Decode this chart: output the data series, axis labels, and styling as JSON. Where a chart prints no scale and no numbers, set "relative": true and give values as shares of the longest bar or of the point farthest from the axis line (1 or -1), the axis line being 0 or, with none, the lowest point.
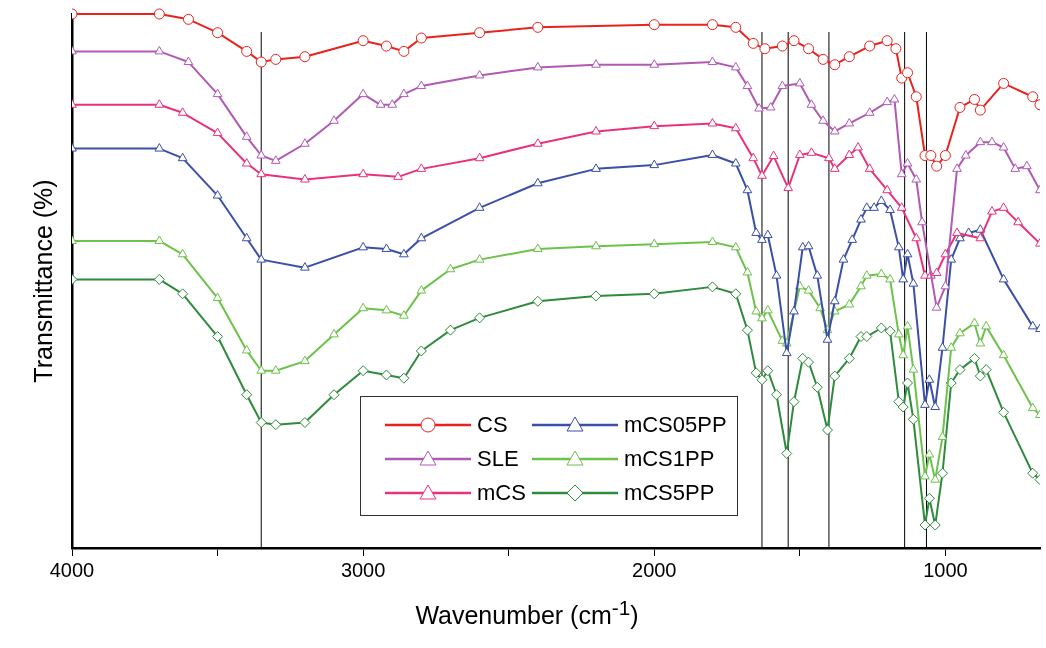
{
  "chart_data": {
    "type": "line",
    "xlabel": "Wavenumber (cm$^{-1}$)",
    "ylabel": "Transmittance (%)",
    "relative": true,
    "xlim": [
      4000,
      675
    ],
    "xticks": [
      4000,
      {
        "value": 3500,
        "label": null
      },
      3000,
      {
        "value": 2500,
        "label": null
      },
      2000,
      {
        "value": 1500,
        "label": null
      },
      1000
    ],
    "grid": false,
    "legend": "bottom",
    "line_style": "solid",
    "ref_lines": [
      {
        "axis": "x",
        "value": 3350,
        "color": "#000000"
      },
      {
        "axis": "x",
        "value": 1630,
        "color": "#000000"
      },
      {
        "axis": "x",
        "value": 1540,
        "color": "#000000"
      },
      {
        "axis": "x",
        "value": 1400,
        "color": "#000000"
      },
      {
        "axis": "x",
        "value": 1140,
        "color": "#000000"
      },
      {
        "axis": "x",
        "value": 1065,
        "color": "#000000"
      }
    ],
    "series": [
      {
        "name": "CS",
        "color": "#e8231e",
        "marker": "circle",
        "x": [
          4000,
          3700,
          3600,
          3500,
          3400,
          3350,
          3300,
          3200,
          3000,
          2920,
          2860,
          2800,
          2600,
          2400,
          2000,
          1800,
          1720,
          1660,
          1620,
          1560,
          1520,
          1470,
          1420,
          1380,
          1330,
          1260,
          1200,
          1170,
          1150,
          1130,
          1100,
          1070,
          1050,
          1030,
          1000,
          950,
          900,
          880,
          800,
          700,
          675
        ],
        "values": [
          1.0,
          1.0,
          0.99,
          0.965,
          0.93,
          0.91,
          0.915,
          0.92,
          0.95,
          0.94,
          0.93,
          0.955,
          0.965,
          0.975,
          0.98,
          0.98,
          0.975,
          0.945,
          0.935,
          0.94,
          0.95,
          0.935,
          0.915,
          0.905,
          0.92,
          0.94,
          0.95,
          0.935,
          0.88,
          0.89,
          0.845,
          0.735,
          0.735,
          0.715,
          0.735,
          0.825,
          0.84,
          0.82,
          0.87,
          0.845,
          0.83
        ]
      },
      {
        "name": "SLE",
        "color": "#b05ab4",
        "marker": "triangle",
        "x": [
          4000,
          3700,
          3600,
          3500,
          3400,
          3350,
          3300,
          3200,
          3100,
          3000,
          2940,
          2900,
          2860,
          2800,
          2600,
          2400,
          2200,
          2000,
          1800,
          1720,
          1680,
          1640,
          1600,
          1560,
          1500,
          1460,
          1420,
          1380,
          1330,
          1260,
          1200,
          1175,
          1150,
          1130,
          1100,
          1080,
          1030,
          1000,
          960,
          930,
          880,
          840,
          800,
          760,
          720,
          675
        ],
        "values": [
          0.93,
          0.93,
          0.91,
          0.85,
          0.77,
          0.735,
          0.725,
          0.757,
          0.8,
          0.85,
          0.83,
          0.83,
          0.85,
          0.865,
          0.885,
          0.9,
          0.905,
          0.905,
          0.91,
          0.9,
          0.865,
          0.823,
          0.825,
          0.865,
          0.87,
          0.83,
          0.8,
          0.78,
          0.795,
          0.815,
          0.835,
          0.84,
          0.7,
          0.72,
          0.69,
          0.61,
          0.45,
          0.49,
          0.71,
          0.735,
          0.76,
          0.76,
          0.75,
          0.71,
          0.715,
          0.67
        ]
      },
      {
        "name": "mCS",
        "color": "#e8327e",
        "marker": "triangle",
        "x": [
          4000,
          3700,
          3620,
          3500,
          3400,
          3350,
          3200,
          3000,
          2880,
          2800,
          2600,
          2400,
          2200,
          2000,
          1800,
          1720,
          1660,
          1630,
          1590,
          1540,
          1500,
          1460,
          1400,
          1380,
          1330,
          1300,
          1260,
          1200,
          1150,
          1100,
          1070,
          1050,
          1030,
          1000,
          960,
          880,
          840,
          800,
          750,
          675
        ],
        "values": [
          0.83,
          0.83,
          0.815,
          0.777,
          0.72,
          0.7,
          0.69,
          0.7,
          0.695,
          0.71,
          0.73,
          0.757,
          0.78,
          0.79,
          0.795,
          0.786,
          0.73,
          0.697,
          0.734,
          0.674,
          0.736,
          0.74,
          0.73,
          0.71,
          0.736,
          0.75,
          0.71,
          0.67,
          0.637,
          0.58,
          0.51,
          0.51,
          0.515,
          0.55,
          0.59,
          0.58,
          0.63,
          0.637,
          0.61,
          0.57
        ]
      },
      {
        "name": "mCS05PP",
        "color": "#3a4fa8",
        "marker": "triangle",
        "x": [
          4000,
          3700,
          3620,
          3500,
          3400,
          3350,
          3200,
          3000,
          2920,
          2860,
          2800,
          2600,
          2400,
          2200,
          2000,
          1800,
          1720,
          1680,
          1650,
          1630,
          1610,
          1580,
          1545,
          1520,
          1490,
          1470,
          1440,
          1405,
          1380,
          1350,
          1320,
          1290,
          1270,
          1245,
          1220,
          1190,
          1160,
          1145,
          1130,
          1110,
          1070,
          1055,
          1035,
          1010,
          980,
          950,
          920,
          880,
          800,
          700,
          675
        ],
        "values": [
          0.748,
          0.748,
          0.73,
          0.66,
          0.58,
          0.54,
          0.525,
          0.563,
          0.56,
          0.55,
          0.58,
          0.637,
          0.683,
          0.71,
          0.717,
          0.736,
          0.72,
          0.67,
          0.59,
          0.577,
          0.586,
          0.51,
          0.365,
          0.443,
          0.563,
          0.565,
          0.51,
          0.39,
          0.462,
          0.54,
          0.577,
          0.615,
          0.637,
          0.637,
          0.65,
          0.633,
          0.563,
          0.503,
          0.55,
          0.495,
          0.268,
          0.315,
          0.264,
          0.375,
          0.54,
          0.58,
          0.59,
          0.596,
          0.503,
          0.415,
          0.41
        ]
      },
      {
        "name": "mCS1PP",
        "color": "#6cc24a",
        "marker": "triangle",
        "x": [
          4000,
          3700,
          3620,
          3500,
          3400,
          3350,
          3300,
          3200,
          3100,
          3000,
          2920,
          2860,
          2800,
          2700,
          2600,
          2400,
          2200,
          2000,
          1800,
          1720,
          1680,
          1650,
          1630,
          1610,
          1560,
          1545,
          1500,
          1470,
          1430,
          1405,
          1380,
          1330,
          1290,
          1270,
          1220,
          1190,
          1160,
          1145,
          1130,
          1110,
          1070,
          1055,
          1035,
          1010,
          980,
          950,
          900,
          880,
          860,
          800,
          700,
          675
        ],
        "values": [
          0.575,
          0.575,
          0.55,
          0.468,
          0.37,
          0.332,
          0.332,
          0.35,
          0.4,
          0.449,
          0.445,
          0.435,
          0.482,
          0.522,
          0.54,
          0.56,
          0.565,
          0.569,
          0.573,
          0.563,
          0.516,
          0.443,
          0.43,
          0.445,
          0.388,
          0.383,
          0.49,
          0.482,
          0.449,
          0.408,
          0.443,
          0.456,
          0.49,
          0.51,
          0.513,
          0.503,
          0.4,
          0.361,
          0.415,
          0.334,
          0.134,
          0.175,
          0.128,
          0.208,
          0.375,
          0.402,
          0.421,
          0.383,
          0.415,
          0.361,
          0.262,
          0.249
        ]
      },
      {
        "name": "mCS5PP",
        "color": "#2e8b3c",
        "marker": "diamond",
        "x": [
          4000,
          3700,
          3620,
          3500,
          3400,
          3350,
          3300,
          3200,
          3100,
          3000,
          2920,
          2860,
          2800,
          2700,
          2600,
          2400,
          2200,
          2000,
          1800,
          1720,
          1680,
          1650,
          1630,
          1610,
          1580,
          1545,
          1520,
          1490,
          1470,
          1440,
          1405,
          1380,
          1330,
          1290,
          1270,
          1220,
          1190,
          1160,
          1145,
          1130,
          1110,
          1070,
          1055,
          1035,
          1010,
          980,
          950,
          900,
          880,
          860,
          800,
          700,
          675
        ],
        "values": [
          0.503,
          0.503,
          0.476,
          0.396,
          0.287,
          0.235,
          0.231,
          0.235,
          0.287,
          0.332,
          0.324,
          0.318,
          0.369,
          0.408,
          0.431,
          0.462,
          0.472,
          0.476,
          0.489,
          0.476,
          0.408,
          0.328,
          0.315,
          0.332,
          0.287,
          0.177,
          0.274,
          0.355,
          0.348,
          0.301,
          0.221,
          0.322,
          0.355,
          0.396,
          0.396,
          0.412,
          0.406,
          0.274,
          0.264,
          0.309,
          0.241,
          0.043,
          0.093,
          0.043,
          0.14,
          0.309,
          0.334,
          0.355,
          0.322,
          0.334,
          0.254,
          0.14,
          0.128
        ]
      }
    ]
  }
}
